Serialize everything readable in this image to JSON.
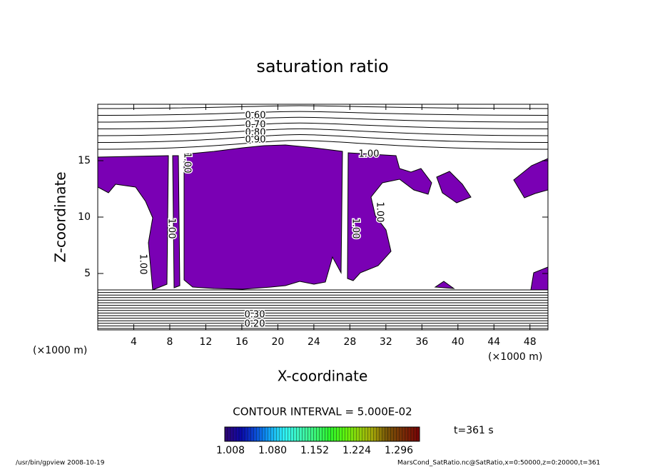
{
  "chart_data": {
    "type": "contour",
    "title": "saturation ratio",
    "xlabel": "X-coordinate",
    "ylabel": "Z-coordinate",
    "xunit": "(×1000 m)",
    "yunit": "(×1000 m)",
    "xlim": [
      0,
      50
    ],
    "ylim": [
      0,
      20
    ],
    "xticks": [
      4,
      8,
      12,
      16,
      20,
      24,
      28,
      32,
      36,
      40,
      44,
      48
    ],
    "yticks": [
      5,
      10,
      15
    ],
    "fill_color": "#7a00b4",
    "contour_labels": [
      "0.60",
      "0.70",
      "0.80",
      "0.90",
      "1.00",
      "1.00",
      "1.00",
      "1.00",
      "1.00",
      "1.00",
      "0.30",
      "0.20"
    ],
    "contour_interval": "CONTOUR INTERVAL = 5.000E-02",
    "colorbar_labels": [
      "1.008",
      "1.080",
      "1.152",
      "1.224",
      "1.296"
    ],
    "time_label": "t=361 s",
    "footer_left": "/usr/bin/gpview   2008-10-19",
    "footer_right": "MarsCond_SatRatio.nc@SatRatio,x=0:50000,z=0:20000,t=361"
  }
}
